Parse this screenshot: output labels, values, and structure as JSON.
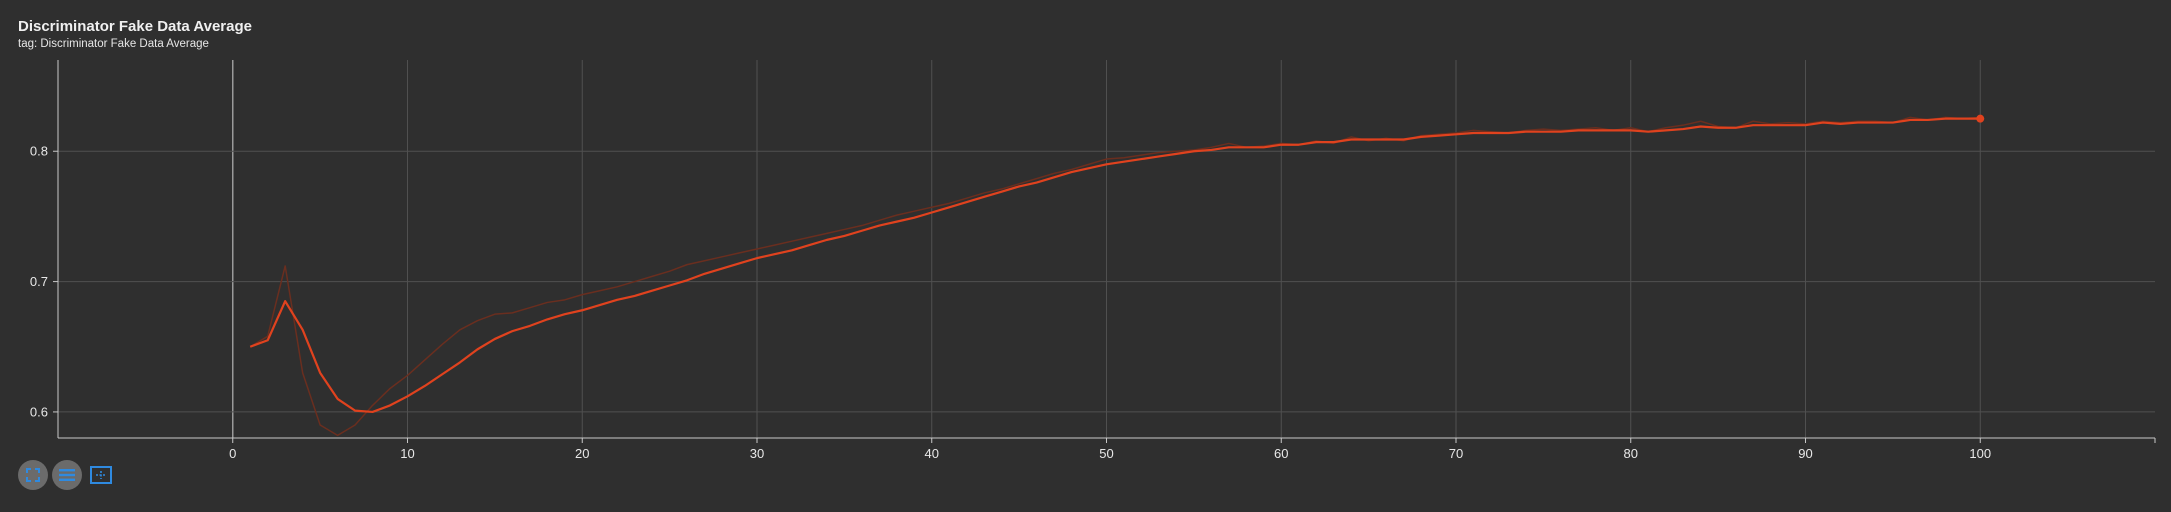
{
  "header": {
    "title": "Discriminator Fake Data Average",
    "tag": "tag: Discriminator Fake Data Average"
  },
  "colors": {
    "background": "#2f2f2f",
    "series": "#e0421e",
    "series_raw": "#6a2e1f",
    "grid": "#505050",
    "axis": "#c8c8c8",
    "toolbar_blue": "#2f8ae0"
  },
  "toolbar": {
    "icons": [
      "fit-domain-icon",
      "toggle-series-list-icon",
      "zoom-select-icon"
    ]
  },
  "chart_data": {
    "type": "line",
    "title": "Discriminator Fake Data Average",
    "xlabel": "",
    "ylabel": "",
    "xlim": [
      -10,
      110
    ],
    "ylim": [
      0.58,
      0.87
    ],
    "x_ticks": [
      0,
      10,
      20,
      30,
      40,
      50,
      60,
      70,
      80,
      90,
      100
    ],
    "y_ticks": [
      0.6,
      0.7,
      0.8
    ],
    "y_tick_labels": [
      "0.6",
      "0.7",
      "0.8"
    ],
    "grid": true,
    "legend": "none",
    "series": [
      {
        "role": "raw",
        "x": [
          1,
          2,
          3,
          4,
          5,
          6,
          7,
          8,
          9,
          10,
          11,
          12,
          13,
          14,
          15,
          16,
          17,
          18,
          19,
          20,
          21,
          22,
          23,
          24,
          25,
          26,
          27,
          28,
          29,
          30,
          31,
          32,
          33,
          34,
          35,
          36,
          37,
          38,
          39,
          40,
          41,
          42,
          43,
          44,
          45,
          46,
          47,
          48,
          49,
          50,
          51,
          52,
          53,
          54,
          55,
          56,
          57,
          58,
          59,
          60,
          61,
          62,
          63,
          64,
          65,
          66,
          67,
          68,
          69,
          70,
          71,
          72,
          73,
          74,
          75,
          76,
          77,
          78,
          79,
          80,
          81,
          82,
          83,
          84,
          85,
          86,
          87,
          88,
          89,
          90,
          91,
          92,
          93,
          94,
          95,
          96,
          97,
          98,
          99,
          100
        ],
        "y": [
          0.65,
          0.658,
          0.712,
          0.63,
          0.59,
          0.582,
          0.59,
          0.605,
          0.618,
          0.628,
          0.64,
          0.652,
          0.663,
          0.67,
          0.675,
          0.676,
          0.68,
          0.684,
          0.686,
          0.69,
          0.693,
          0.696,
          0.7,
          0.704,
          0.708,
          0.713,
          0.716,
          0.719,
          0.722,
          0.725,
          0.728,
          0.731,
          0.734,
          0.737,
          0.74,
          0.743,
          0.747,
          0.751,
          0.754,
          0.757,
          0.76,
          0.764,
          0.768,
          0.771,
          0.775,
          0.779,
          0.783,
          0.786,
          0.79,
          0.794,
          0.795,
          0.797,
          0.799,
          0.8,
          0.801,
          0.803,
          0.806,
          0.803,
          0.804,
          0.806,
          0.805,
          0.808,
          0.806,
          0.811,
          0.808,
          0.81,
          0.808,
          0.812,
          0.813,
          0.814,
          0.816,
          0.815,
          0.814,
          0.816,
          0.817,
          0.816,
          0.817,
          0.818,
          0.816,
          0.818,
          0.815,
          0.818,
          0.82,
          0.823,
          0.819,
          0.818,
          0.823,
          0.821,
          0.822,
          0.821,
          0.823,
          0.822,
          0.823,
          0.823,
          0.822,
          0.826,
          0.824,
          0.826,
          0.825,
          0.826
        ]
      },
      {
        "role": "smoothed",
        "x": [
          1,
          2,
          3,
          4,
          5,
          6,
          7,
          8,
          9,
          10,
          11,
          12,
          13,
          14,
          15,
          16,
          17,
          18,
          19,
          20,
          21,
          22,
          23,
          24,
          25,
          26,
          27,
          28,
          29,
          30,
          31,
          32,
          33,
          34,
          35,
          36,
          37,
          38,
          39,
          40,
          41,
          42,
          43,
          44,
          45,
          46,
          47,
          48,
          49,
          50,
          51,
          52,
          53,
          54,
          55,
          56,
          57,
          58,
          59,
          60,
          61,
          62,
          63,
          64,
          65,
          66,
          67,
          68,
          69,
          70,
          71,
          72,
          73,
          74,
          75,
          76,
          77,
          78,
          79,
          80,
          81,
          82,
          83,
          84,
          85,
          86,
          87,
          88,
          89,
          90,
          91,
          92,
          93,
          94,
          95,
          96,
          97,
          98,
          99,
          100
        ],
        "y": [
          0.65,
          0.655,
          0.685,
          0.663,
          0.63,
          0.61,
          0.601,
          0.6,
          0.605,
          0.612,
          0.62,
          0.629,
          0.638,
          0.648,
          0.656,
          0.662,
          0.666,
          0.671,
          0.675,
          0.678,
          0.682,
          0.686,
          0.689,
          0.693,
          0.697,
          0.701,
          0.706,
          0.71,
          0.714,
          0.718,
          0.721,
          0.724,
          0.728,
          0.732,
          0.735,
          0.739,
          0.743,
          0.746,
          0.749,
          0.753,
          0.757,
          0.761,
          0.765,
          0.769,
          0.773,
          0.776,
          0.78,
          0.784,
          0.787,
          0.79,
          0.792,
          0.794,
          0.796,
          0.798,
          0.8,
          0.801,
          0.803,
          0.803,
          0.803,
          0.805,
          0.805,
          0.807,
          0.807,
          0.809,
          0.809,
          0.809,
          0.809,
          0.811,
          0.812,
          0.813,
          0.814,
          0.814,
          0.814,
          0.815,
          0.815,
          0.815,
          0.816,
          0.816,
          0.816,
          0.816,
          0.815,
          0.816,
          0.817,
          0.819,
          0.818,
          0.818,
          0.82,
          0.82,
          0.82,
          0.82,
          0.822,
          0.821,
          0.822,
          0.822,
          0.822,
          0.824,
          0.824,
          0.825,
          0.825,
          0.825
        ]
      }
    ]
  }
}
